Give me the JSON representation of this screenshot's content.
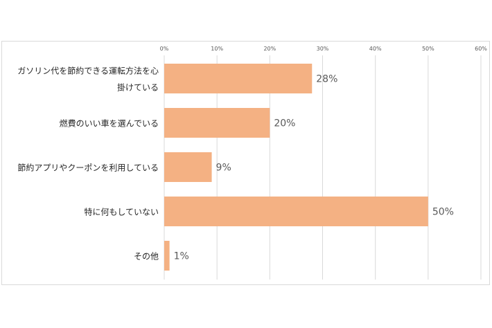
{
  "chart_data": {
    "type": "bar",
    "orientation": "horizontal",
    "categories": [
      [
        "ガソリン代を節約できる運転方法を心",
        "掛けている"
      ],
      [
        "燃費のいい車を選んでいる"
      ],
      [
        "節約アプリやクーポンを利用している"
      ],
      [
        "特に何もしていない"
      ],
      [
        "その他"
      ]
    ],
    "values": [
      28,
      20,
      9,
      50,
      1
    ],
    "value_labels": [
      "28%",
      "20%",
      "9%",
      "50%",
      "1%"
    ],
    "xlim": [
      0,
      60
    ],
    "x_ticks": [
      "0%",
      "10%",
      "20%",
      "30%",
      "40%",
      "50%",
      "60%"
    ],
    "bar_color": "#f4b183",
    "grid": true,
    "grid_color": "#d9d9d9",
    "xaxis_position": "top",
    "legend": "none"
  }
}
